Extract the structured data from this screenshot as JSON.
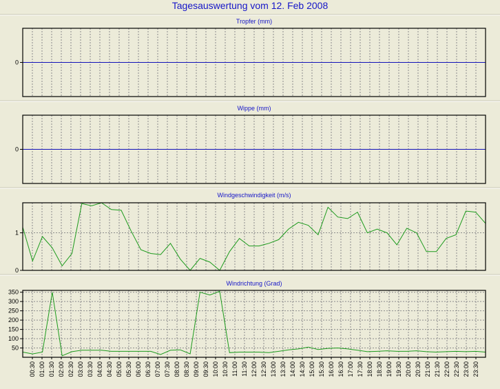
{
  "title": "Tagesauswertung vom 12. Feb 2008",
  "colors": {
    "title": "#1515c8",
    "zero_line": "#1010b8",
    "series": "#1c9a1c",
    "background": "#ecebd9",
    "grid": "#8a8a8a"
  },
  "chart_data": [
    {
      "type": "line",
      "title": "Tropfer (mm)",
      "y_ticks": [
        0
      ],
      "ylim": [
        -1,
        1
      ],
      "x_categories": "time",
      "grid": true,
      "series": [
        {
          "values": "constant_zero"
        }
      ]
    },
    {
      "type": "line",
      "title": "Wippe (mm)",
      "y_ticks": [
        0
      ],
      "ylim": [
        -1,
        1
      ],
      "grid": true,
      "series": [
        {
          "values": "constant_zero"
        }
      ]
    },
    {
      "type": "line",
      "title": "Windgeschwindigkeit (m/s)",
      "y_ticks": [
        0,
        1
      ],
      "ylim": [
        0,
        1.8
      ],
      "grid": true,
      "series": [
        {
          "values": [
            1.15,
            0.25,
            0.9,
            0.6,
            0.12,
            0.45,
            1.78,
            1.72,
            1.8,
            1.62,
            1.6,
            1.05,
            0.55,
            0.45,
            0.42,
            0.72,
            0.3,
            0.0,
            0.32,
            0.22,
            0.0,
            0.5,
            0.85,
            0.65,
            0.65,
            0.72,
            0.82,
            1.1,
            1.28,
            1.2,
            0.95,
            1.68,
            1.42,
            1.38,
            1.55,
            1.0,
            1.1,
            1.0,
            0.68,
            1.12,
            1.0,
            0.5,
            0.5,
            0.85,
            0.95,
            1.58,
            1.55,
            1.25
          ]
        }
      ]
    },
    {
      "type": "line",
      "title": "Windrichtung (Grad)",
      "y_ticks": [
        50,
        100,
        150,
        200,
        250,
        300,
        350
      ],
      "ylim": [
        0,
        360
      ],
      "grid": true,
      "series": [
        {
          "values": [
            28,
            18,
            28,
            350,
            8,
            30,
            38,
            38,
            38,
            32,
            32,
            32,
            32,
            32,
            15,
            38,
            40,
            18,
            350,
            335,
            355,
            25,
            28,
            28,
            28,
            25,
            32,
            40,
            45,
            55,
            42,
            48,
            50,
            45,
            38,
            30,
            32,
            35,
            32,
            32,
            35,
            30,
            28,
            30,
            32,
            30,
            32,
            28
          ]
        }
      ]
    }
  ],
  "x_labels": [
    "00:30",
    "01:00",
    "01:30",
    "02:00",
    "02:30",
    "03:00",
    "03:30",
    "04:00",
    "04:30",
    "05:00",
    "05:30",
    "06:00",
    "06:30",
    "07:00",
    "07:30",
    "08:00",
    "08:30",
    "09:00",
    "09:30",
    "10:00",
    "10:30",
    "11:00",
    "11:30",
    "12:00",
    "12:30",
    "13:00",
    "13:30",
    "14:00",
    "14:30",
    "15:00",
    "15:30",
    "16:00",
    "16:30",
    "17:00",
    "17:30",
    "18:00",
    "18:30",
    "19:00",
    "19:30",
    "20:00",
    "20:30",
    "21:00",
    "21:30",
    "22:00",
    "22:30",
    "23:00",
    "23:30"
  ]
}
